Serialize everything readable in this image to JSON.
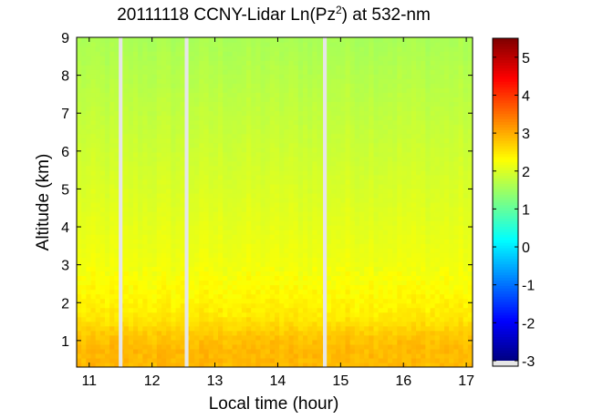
{
  "chart_data": {
    "type": "heatmap",
    "title": "20111118 CCNY-Lidar Ln(Pz",
    "title_superscript": "2",
    "title_suffix": ") at 532-nm",
    "xlabel": "Local time (hour)",
    "ylabel": "Altitude (km)",
    "xlim": [
      10.8,
      17.1
    ],
    "ylim": [
      0.3,
      9.0
    ],
    "x_ticks": [
      11,
      12,
      13,
      14,
      15,
      16,
      17
    ],
    "x_tick_labels": [
      "11",
      "12",
      "13",
      "14",
      "15",
      "16",
      "17"
    ],
    "y_ticks": [
      1,
      2,
      3,
      4,
      5,
      6,
      7,
      8,
      9
    ],
    "y_tick_labels": [
      "1",
      "2",
      "3",
      "4",
      "5",
      "6",
      "7",
      "8",
      "9"
    ],
    "colorbar": {
      "range": [
        -3,
        5.5
      ],
      "ticks": [
        -3,
        -2,
        -1,
        0,
        1,
        2,
        3,
        4,
        5
      ],
      "tick_labels": [
        "-3",
        "-2",
        "-1",
        "0",
        "1",
        "2",
        "3",
        "4",
        "5"
      ],
      "colormap": "jet",
      "no_data_color": "#e6e6e6"
    },
    "data_gaps_hours": [
      [
        11.47,
        11.53
      ],
      [
        12.52,
        12.58
      ],
      [
        14.72,
        14.78
      ]
    ],
    "altitude_profile": {
      "altitude_km": [
        0.3,
        0.8,
        1.2,
        1.6,
        2.0,
        2.5,
        3.0,
        3.5,
        4.0,
        5.0,
        6.0,
        7.0,
        8.0,
        9.0
      ],
      "value": [
        2.9,
        2.9,
        2.75,
        2.5,
        2.4,
        2.3,
        2.2,
        2.15,
        2.1,
        2.0,
        1.9,
        1.8,
        1.7,
        1.6
      ]
    }
  }
}
